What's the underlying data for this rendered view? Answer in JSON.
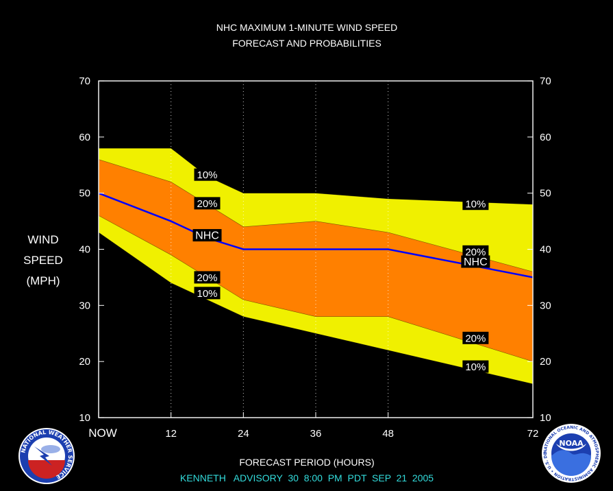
{
  "chart_data": {
    "type": "area",
    "title": "NHC MAXIMUM 1-MINUTE WIND SPEED",
    "subtitle": "FORECAST AND PROBABILITIES",
    "ylabel_lines": [
      "WIND",
      "SPEED",
      "(MPH)"
    ],
    "xlabel": "FORECAST PERIOD (HOURS)",
    "ylim": [
      10,
      70
    ],
    "xlim": [
      0,
      72
    ],
    "y_ticks": [
      10,
      20,
      30,
      40,
      50,
      60,
      70
    ],
    "x_ticks": [
      {
        "x": 0,
        "label": "NOW"
      },
      {
        "x": 12,
        "label": "12"
      },
      {
        "x": 24,
        "label": "24"
      },
      {
        "x": 36,
        "label": "36"
      },
      {
        "x": 48,
        "label": "48"
      },
      {
        "x": 72,
        "label": "72"
      }
    ],
    "gridlines_x": [
      12,
      24,
      36,
      48
    ],
    "x": [
      0,
      12,
      18,
      24,
      36,
      48,
      60,
      72
    ],
    "series": [
      {
        "name": "10%",
        "role": "upper_10",
        "values": [
          58,
          58,
          53,
          50,
          50,
          49,
          48.5,
          48
        ],
        "color": "#f0f000"
      },
      {
        "name": "20%",
        "role": "upper_20",
        "values": [
          56,
          52,
          48,
          44,
          45,
          43,
          39.5,
          36
        ],
        "color": "#ff8000"
      },
      {
        "name": "NHC",
        "role": "forecast",
        "values": [
          50,
          45,
          42,
          40,
          40,
          40,
          37.5,
          35
        ],
        "color": "#0000ff"
      },
      {
        "name": "20%",
        "role": "lower_20",
        "values": [
          46,
          39,
          35,
          31,
          28,
          28,
          24,
          20
        ],
        "color": "#ff8000"
      },
      {
        "name": "10%",
        "role": "lower_10",
        "values": [
          43,
          34,
          31,
          28,
          25,
          22,
          19,
          16
        ],
        "color": "#f0f000"
      }
    ],
    "labels": [
      {
        "text": "10%",
        "x": 18,
        "y": 53.3
      },
      {
        "text": "20%",
        "x": 18,
        "y": 48.2
      },
      {
        "text": "NHC",
        "x": 18,
        "y": 42.5
      },
      {
        "text": "20%",
        "x": 18,
        "y": 35.0
      },
      {
        "text": "10%",
        "x": 18,
        "y": 32.2
      },
      {
        "text": "10%",
        "x": 62.5,
        "y": 48.1
      },
      {
        "text": "20%",
        "x": 62.5,
        "y": 39.6
      },
      {
        "text": "NHC",
        "x": 62.5,
        "y": 37.8
      },
      {
        "text": "20%",
        "x": 62.5,
        "y": 24.2
      },
      {
        "text": "10%",
        "x": 62.5,
        "y": 19.1
      }
    ]
  },
  "advisory_line": "KENNETH   ADVISORY  30  8:00  PM  PDT  SEP  21  2005",
  "colors": {
    "background": "#000000",
    "outer_band": "#f0f000",
    "inner_band": "#ff8000",
    "forecast_line": "#0000ff",
    "advisory_text": "#33dddd"
  },
  "logos": {
    "left": {
      "icon": "national-weather-service-logo-icon",
      "ring_text": "NATIONAL WEATHER SERVICE"
    },
    "right": {
      "icon": "noaa-logo-icon",
      "center_text": "NOAA",
      "ring_text": "NATIONAL OCEANIC AND ATMOSPHERIC ADMINISTRATION • U.S. DEPARTMENT OF COMMERCE"
    }
  }
}
